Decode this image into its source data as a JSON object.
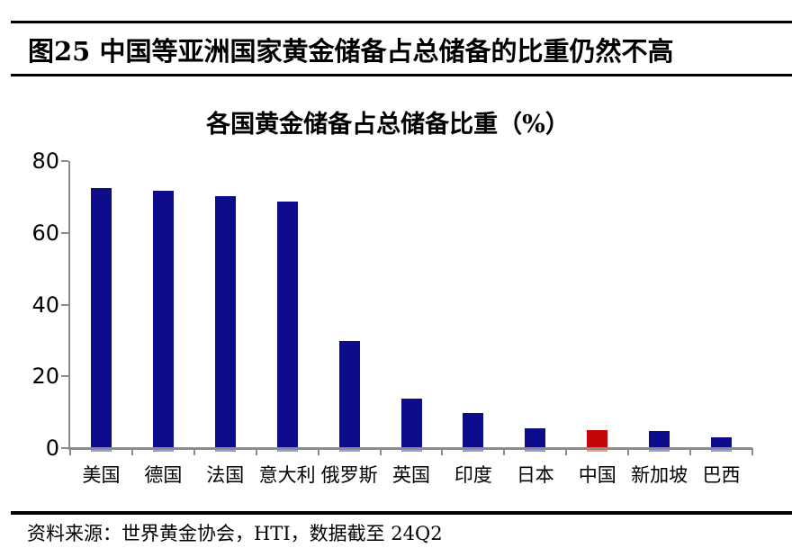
{
  "header": {
    "figure_title": "图25 中国等亚洲国家黄金储备占总储备的比重仍然不高"
  },
  "chart_data": {
    "type": "bar",
    "title": "各国黄金储备占总储备比重（%）",
    "categories": [
      "美国",
      "德国",
      "法国",
      "意大利",
      "俄罗斯",
      "英国",
      "印度",
      "日本",
      "中国",
      "新加坡",
      "巴西"
    ],
    "values": [
      72.6,
      71.7,
      70.2,
      68.7,
      29.9,
      13.8,
      9.9,
      5.4,
      5.1,
      4.7,
      2.9
    ],
    "unit": "%",
    "ylim": [
      0,
      80
    ],
    "yticks": [
      0,
      20,
      40,
      60,
      80
    ],
    "grid": false,
    "legend": "none",
    "highlight_category": "中国",
    "bar_color": "#0D0D8C",
    "highlight_color": "#C40606",
    "axis_color": "#8C8C8C"
  },
  "footer": {
    "source": "资料来源：世界黄金协会，HTI，数据截至 24Q2"
  }
}
